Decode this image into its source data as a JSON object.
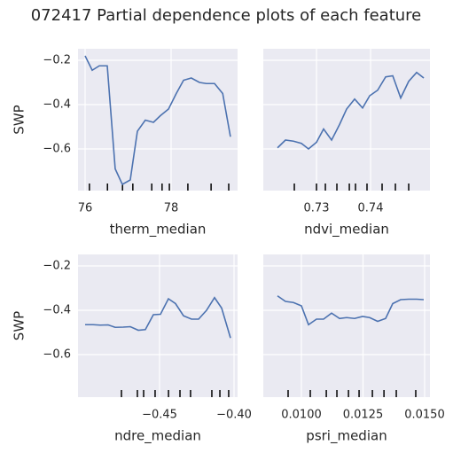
{
  "title": "072417 Partial dependence plots of each feature",
  "chart_data": [
    {
      "type": "line",
      "xlabel": "therm_median",
      "ylabel": "SWP",
      "color": "#4c72b0",
      "grid": true,
      "show_ytick_labels": true,
      "x": [
        76.0,
        76.165,
        76.33,
        76.515,
        76.7,
        76.866,
        77.05,
        77.216,
        77.4,
        77.59,
        77.75,
        77.94,
        78.12,
        78.29,
        78.47,
        78.66,
        78.82,
        79.01,
        79.2,
        79.38
      ],
      "values": [
        -0.18,
        -0.245,
        -0.225,
        -0.225,
        -0.69,
        -0.76,
        -0.74,
        -0.52,
        -0.47,
        -0.48,
        -0.45,
        -0.42,
        -0.35,
        -0.29,
        -0.28,
        -0.3,
        -0.305,
        -0.305,
        -0.35,
        -0.545
      ],
      "deciles": [
        76.1,
        76.52,
        76.87,
        77.11,
        77.55,
        77.79,
        77.96,
        78.39,
        78.93,
        79.34
      ],
      "xlim": [
        75.835,
        79.546
      ],
      "xticks": [
        76,
        78
      ],
      "ylim": [
        -0.788,
        -0.148
      ],
      "yticks": [
        {
          "value": -0.6,
          "label": "−0.6"
        },
        {
          "value": -0.4,
          "label": "−0.4"
        },
        {
          "value": -0.2,
          "label": "−0.2"
        }
      ]
    },
    {
      "type": "line",
      "xlabel": "ndvi_median",
      "color": "#4c72b0",
      "grid": true,
      "show_ytick_labels": false,
      "x": [
        0.72279,
        0.72426,
        0.72574,
        0.72721,
        0.72852,
        0.73,
        0.73131,
        0.73279,
        0.73426,
        0.73557,
        0.73705,
        0.73852,
        0.73984,
        0.74131,
        0.74279,
        0.7441,
        0.74557,
        0.74705,
        0.74852,
        0.74984
      ],
      "values": [
        -0.595,
        -0.56,
        -0.565,
        -0.575,
        -0.6,
        -0.57,
        -0.51,
        -0.56,
        -0.49,
        -0.42,
        -0.375,
        -0.415,
        -0.36,
        -0.335,
        -0.275,
        -0.27,
        -0.37,
        -0.295,
        -0.255,
        -0.28
      ],
      "deciles": [
        0.7259,
        0.73,
        0.73164,
        0.73377,
        0.73607,
        0.73721,
        0.73934,
        0.74213,
        0.74459,
        0.74705
      ],
      "xlim": [
        0.72016,
        0.75098
      ],
      "xticks": [
        0.73,
        0.74
      ],
      "ylim": [
        -0.788,
        -0.148
      ],
      "yticks": [
        -0.6,
        -0.4,
        -0.2
      ]
    },
    {
      "type": "line",
      "xlabel": "ndre_median",
      "ylabel": "SWP",
      "color": "#4c72b0",
      "grid": true,
      "show_ytick_labels": true,
      "x": [
        -0.5,
        -0.49464,
        -0.48988,
        -0.48452,
        -0.47976,
        -0.4744,
        -0.46964,
        -0.46429,
        -0.45952,
        -0.45417,
        -0.4494,
        -0.44405,
        -0.43929,
        -0.43393,
        -0.42857,
        -0.42381,
        -0.41845,
        -0.4131,
        -0.40833,
        -0.40238
      ],
      "values": [
        -0.465,
        -0.465,
        -0.467,
        -0.466,
        -0.477,
        -0.476,
        -0.474,
        -0.49,
        -0.487,
        -0.42,
        -0.418,
        -0.348,
        -0.37,
        -0.425,
        -0.44,
        -0.44,
        -0.4,
        -0.343,
        -0.39,
        -0.525
      ],
      "deciles": [
        -0.4756,
        -0.4649,
        -0.4607,
        -0.453,
        -0.444,
        -0.4363,
        -0.4292,
        -0.4149,
        -0.4095,
        -0.4036
      ],
      "xlim": [
        -0.50476,
        -0.39762
      ],
      "xticks": [
        {
          "value": -0.45,
          "label": "−0.45"
        },
        {
          "value": -0.4,
          "label": "−0.40"
        }
      ],
      "ylim": [
        -0.792,
        -0.148
      ],
      "yticks": [
        {
          "value": -0.6,
          "label": "−0.6"
        },
        {
          "value": -0.4,
          "label": "−0.4"
        },
        {
          "value": -0.2,
          "label": "−0.2"
        }
      ]
    },
    {
      "type": "line",
      "xlabel": "psri_median",
      "color": "#4c72b0",
      "grid": true,
      "show_ytick_labels": false,
      "x": [
        0.009029,
        0.009353,
        0.009676,
        0.01,
        0.010288,
        0.010612,
        0.010899,
        0.011223,
        0.011547,
        0.011835,
        0.012158,
        0.012482,
        0.01277,
        0.013094,
        0.013417,
        0.013705,
        0.014029,
        0.014353,
        0.014676,
        0.014964
      ],
      "values": [
        -0.335,
        -0.36,
        -0.365,
        -0.38,
        -0.465,
        -0.44,
        -0.44,
        -0.413,
        -0.437,
        -0.433,
        -0.437,
        -0.428,
        -0.433,
        -0.45,
        -0.437,
        -0.37,
        -0.352,
        -0.35,
        -0.35,
        -0.352
      ],
      "deciles": [
        0.00946,
        0.01036,
        0.01101,
        0.01144,
        0.01191,
        0.01234,
        0.01288,
        0.01335,
        0.01385,
        0.01464
      ],
      "xlim": [
        0.008453,
        0.015216
      ],
      "xticks": [
        {
          "value": 0.01,
          "label": "0.0100"
        },
        {
          "value": 0.0125,
          "label": "0.0125"
        },
        {
          "value": 0.015,
          "label": "0.0150"
        }
      ],
      "ylim": [
        -0.792,
        -0.148
      ],
      "yticks": [
        -0.6,
        -0.4,
        -0.2
      ]
    }
  ]
}
